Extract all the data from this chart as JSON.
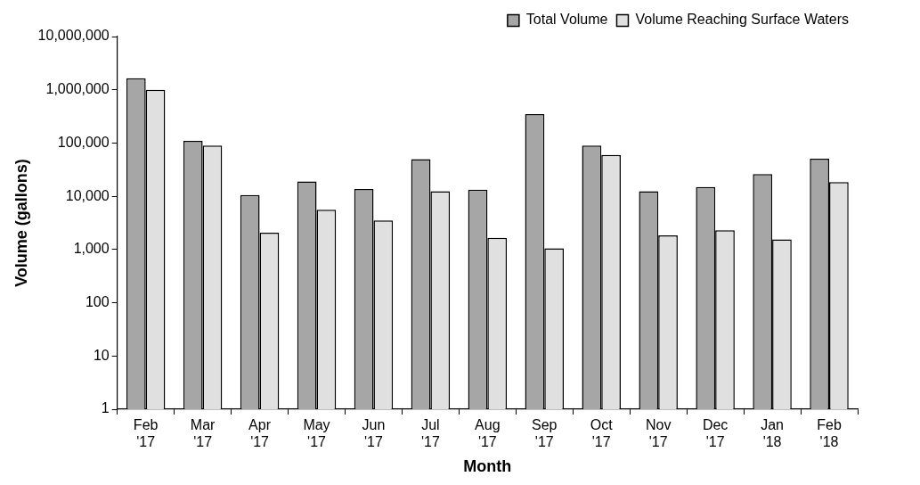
{
  "chart_data": {
    "type": "bar",
    "xlabel": "Month",
    "ylabel": "Volume (gallons)",
    "categories": [
      "Feb '17",
      "Mar '17",
      "Apr '17",
      "May '17",
      "Jun '17",
      "Jul '17",
      "Aug '17",
      "Sep '17",
      "Oct '17",
      "Nov '17",
      "Dec '17",
      "Jan '18",
      "Feb '18"
    ],
    "series": [
      {
        "name": "Total Volume",
        "color": "#a6a6a6",
        "values": [
          1650000,
          110000,
          10600,
          19000,
          13700,
          50000,
          13300,
          350000,
          90000,
          12400,
          15000,
          26000,
          51000
        ]
      },
      {
        "name": "Volume Reaching Surface Waters",
        "color": "#e0e0e0",
        "values": [
          1000000,
          90000,
          2070,
          5600,
          3500,
          12400,
          1650,
          1050,
          60000,
          1840,
          2300,
          1550,
          18400
        ]
      }
    ],
    "log": "y",
    "ylim": [
      1,
      10000000
    ],
    "yticks": [
      1,
      10,
      100,
      {
        "value": 1000,
        "label": "1,000"
      },
      {
        "value": 10000,
        "label": "10,000"
      },
      {
        "value": 100000,
        "label": "100,000"
      },
      {
        "value": 1000000,
        "label": "1,000,000"
      },
      {
        "value": 10000000,
        "label": "10,000,000"
      }
    ],
    "grid": false,
    "legend": "top right"
  }
}
